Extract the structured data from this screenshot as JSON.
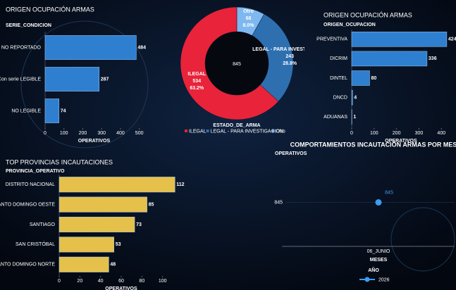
{
  "chart_data": [
    {
      "type": "hbar",
      "title": "ORIGEN OCUPACIÓN ARMAS",
      "ylabel": "SERIE_CONDICION",
      "xlabel": "OPERATIVOS",
      "categories": [
        "NO REPORTADO",
        "Con serie LEGIBLE",
        "NO LEGIBLE"
      ],
      "values": [
        484,
        287,
        74
      ],
      "color": "#2f7fd0",
      "xlim": [
        0,
        520
      ],
      "xticks": [
        0,
        100,
        200,
        300,
        400,
        500
      ]
    },
    {
      "type": "donut",
      "legend_title": "ESTADO_DE_ARMA",
      "total": 845,
      "categories": [
        "ILEGAL",
        "LEGAL - PARA INVESTIGACION",
        "Otro"
      ],
      "values": [
        534,
        243,
        68
      ],
      "percent_labels": [
        "63.2%",
        "28.8%",
        "8.0%"
      ],
      "colors": [
        "#e8233a",
        "#2e6fb0",
        "#7fb8f0"
      ]
    },
    {
      "type": "hbar",
      "title": "ORIGEN OCUPACIÓN ARMAS",
      "ylabel": "ORIGEN_OCUPACION",
      "xlabel": "OPERATIVOS",
      "categories": [
        "PREVENTIVA",
        "DICRIM",
        "DINTEL",
        "DNCD",
        "ADUANAS"
      ],
      "values": [
        424,
        336,
        80,
        4,
        1
      ],
      "color": "#2f7fd0",
      "xlim": [
        0,
        440
      ],
      "xticks": [
        0,
        100,
        200,
        300,
        400
      ]
    },
    {
      "type": "hbar",
      "title": "TOP PROVINCIAS INCAUTACIONES",
      "ylabel": "PROVINCIA_OPERATIVO",
      "xlabel": "OPERATIVOS",
      "categories": [
        "DISTRITO NACIONAL",
        "SANTO DOMINGO OESTE",
        "SANTIAGO",
        "SAN CRISTÓBAL",
        "SANTO DOMINGO NORTE"
      ],
      "values": [
        112,
        85,
        73,
        53,
        48
      ],
      "color": "#e5c04a",
      "xlim": [
        0,
        120
      ],
      "xticks": [
        0,
        20,
        40,
        60,
        80,
        100
      ]
    },
    {
      "type": "line",
      "title": "COMPORTAMIENTOS INCAUTACIÓN ARMAS  POR MES",
      "ylabel": "OPERATIVOS",
      "xlabel": "MESES",
      "legend_title": "AÑO",
      "categories": [
        "06_JUNIO"
      ],
      "series": [
        {
          "name": "2026",
          "color": "#3d9cf0",
          "values": [
            845
          ]
        }
      ],
      "ylim": [
        844,
        846
      ],
      "yticks": [
        845
      ]
    }
  ]
}
